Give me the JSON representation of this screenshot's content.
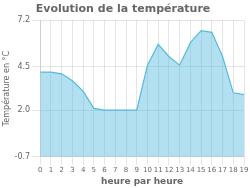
{
  "chart_data": {
    "type": "area",
    "title": "Evolution de la température",
    "x_label": "heure par heure",
    "y_label": "Température en °C",
    "x": [
      0,
      1,
      2,
      3,
      4,
      5,
      6,
      7,
      8,
      9,
      10,
      11,
      12,
      13,
      14,
      15,
      16,
      17,
      18,
      19
    ],
    "values": [
      4.2,
      4.2,
      4.1,
      3.7,
      3.1,
      2.1,
      2.0,
      2.0,
      2.0,
      2.0,
      4.6,
      5.8,
      5.1,
      4.6,
      5.9,
      6.6,
      6.5,
      5.1,
      3.0,
      2.9
    ],
    "color": "#55bbdd",
    "xlim": [
      0,
      19
    ],
    "xticks": [
      0,
      1,
      2,
      3,
      4,
      5,
      6,
      7,
      8,
      9,
      10,
      11,
      12,
      13,
      14,
      15,
      16,
      17,
      18,
      19
    ],
    "ylim": [
      -0.7,
      7.2
    ],
    "yticks": [
      -0.7,
      {
        "value": 2.0,
        "label": "2.0"
      },
      4.5,
      7.2
    ],
    "grid": true
  }
}
